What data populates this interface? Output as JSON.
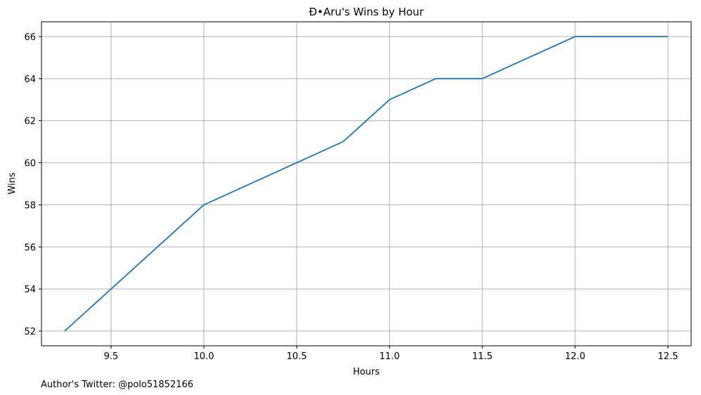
{
  "chart_data": {
    "type": "line",
    "title": "Đ•Aru's Wins by Hour",
    "xlabel": "Hours",
    "ylabel": "Wins",
    "x": [
      9.25,
      10.0,
      10.75,
      11.0,
      11.25,
      11.5,
      12.0,
      12.5
    ],
    "series": [
      {
        "values": [
          52,
          58,
          61,
          63,
          64,
          64,
          66,
          66
        ],
        "color": "#1f77b4"
      }
    ],
    "xticks": [
      "9.5",
      "10.0",
      "10.5",
      "11.0",
      "11.5",
      "12.0",
      "12.5"
    ],
    "yticks": [
      "52",
      "54",
      "56",
      "58",
      "60",
      "62",
      "64",
      "66"
    ],
    "xlim": [
      9.125,
      12.625
    ],
    "ylim": [
      51.3,
      66.7
    ],
    "grid": true
  },
  "footer": "Author's Twitter: @polo51852166"
}
